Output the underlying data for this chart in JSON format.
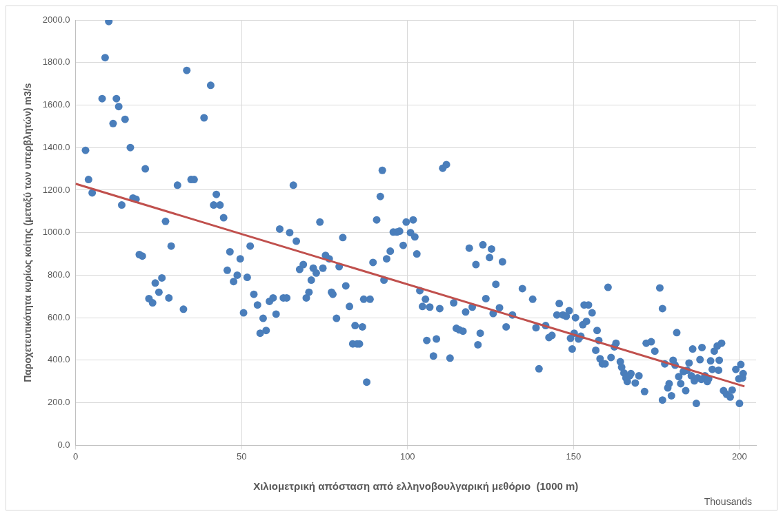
{
  "chart_data": {
    "type": "scatter",
    "xlabel": "Χιλιομετρική απόσταση από ελληνοβουλγαρική μεθόριο  (1000 m)",
    "ylabel": "Παροχετευτικότητα κυρίως κοίτης (μεταξύ των υπερβλητών) m3/s",
    "annotations": [
      "Thousands"
    ],
    "xlim": [
      0,
      205
    ],
    "xticks": [
      0,
      50,
      100,
      150,
      200
    ],
    "ylim": [
      0,
      2000
    ],
    "yticks": [
      {
        "value": 0,
        "label": "0.0"
      },
      {
        "value": 200,
        "label": "200.0"
      },
      {
        "value": 400,
        "label": "400.0"
      },
      {
        "value": 600,
        "label": "600.0"
      },
      {
        "value": 800,
        "label": "800.0"
      },
      {
        "value": 1000,
        "label": "1000.0"
      },
      {
        "value": 1200,
        "label": "1200.0"
      },
      {
        "value": 1400,
        "label": "1400.0"
      },
      {
        "value": 1600,
        "label": "1600.0"
      },
      {
        "value": 1800,
        "label": "1800.0"
      },
      {
        "value": 2000,
        "label": "2000.0"
      }
    ],
    "grid": true,
    "legend": false,
    "series": [
      {
        "type": "scatter",
        "marker": "circle",
        "color": "#4a7ebb",
        "x": [
          3.0,
          3.9,
          5.0,
          8.0,
          8.9,
          10,
          11.3,
          12.3,
          13.0,
          13.9,
          14.9,
          16.5,
          17.3,
          18.2,
          19.2,
          20.1,
          21.0,
          22.1,
          23.2,
          24.0,
          25.1,
          26.0,
          27.1,
          28.1,
          28.8,
          30.7,
          32.5,
          33.5,
          34.8,
          35.7,
          38.7,
          40.7,
          41.6,
          42.4,
          43.5,
          44.6,
          45.7,
          46.5,
          47.6,
          48.7,
          49.6,
          50.6,
          51.7,
          52.6,
          53.7,
          54.8,
          55.6,
          56.5,
          57.4,
          58.4,
          59.5,
          60.4,
          61.5,
          62.6,
          63.6,
          64.5,
          65.6,
          66.5,
          67.5,
          68.6,
          69.5,
          70.3,
          71.0,
          71.6,
          72.5,
          73.6,
          74.5,
          75.3,
          76.4,
          77.1,
          77.5,
          78.6,
          79.4,
          80.5,
          81.4,
          82.5,
          83.5,
          84.2,
          84.8,
          85.5,
          86.4,
          86.8,
          87.7,
          88.7,
          89.6,
          90.7,
          91.8,
          92.4,
          92.9,
          93.7,
          94.8,
          95.7,
          96.8,
          97.6,
          98.7,
          99.6,
          100.9,
          101.7,
          102.2,
          102.8,
          103.7,
          104.5,
          105.4,
          105.8,
          106.7,
          107.8,
          108.7,
          109.7,
          110.6,
          111.7,
          112.8,
          113.9,
          114.7,
          115.6,
          116.7,
          117.5,
          118.6,
          119.5,
          120.6,
          121.2,
          121.9,
          122.7,
          123.6,
          124.7,
          125.3,
          125.8,
          126.6,
          127.7,
          128.6,
          129.7,
          131.6,
          134.6,
          137.7,
          138.7,
          139.6,
          141.6,
          142.6,
          143.5,
          145.0,
          145.7,
          146.8,
          147.8,
          148.7,
          149.1,
          149.6,
          150.2,
          150.6,
          151.5,
          152.2,
          152.8,
          153.2,
          153.9,
          154.5,
          155.6,
          156.7,
          157.1,
          157.6,
          158.0,
          158.7,
          159.5,
          160.4,
          161.3,
          162.3,
          162.8,
          164.1,
          164.5,
          165.2,
          165.8,
          166.2,
          166.9,
          167.3,
          168.6,
          169.7,
          171.4,
          171.9,
          173.4,
          174.5,
          176.0,
          176.8,
          176.8,
          177.5,
          178.4,
          178.8,
          179.5,
          180.0,
          180.6,
          181.1,
          181.7,
          182.3,
          183.1,
          183.8,
          184.2,
          184.8,
          185.5,
          185.9,
          186.4,
          187.0,
          187.4,
          188.1,
          188.5,
          188.7,
          189.6,
          190.3,
          190.7,
          191.3,
          191.8,
          192.4,
          193.3,
          193.7,
          193.9,
          194.6,
          195.2,
          196.1,
          197.2,
          197.8,
          198.9,
          199.8,
          200.0,
          200.4,
          200.9,
          201.1
        ],
        "values": [
          1387,
          1250,
          1187,
          1630,
          1823,
          1993,
          1513,
          1630,
          1593,
          1130,
          1533,
          1400,
          1163,
          1157,
          897,
          890,
          1300,
          690,
          670,
          763,
          720,
          787,
          1053,
          693,
          937,
          1223,
          640,
          1763,
          1250,
          1250,
          1540,
          1693,
          1130,
          1180,
          1130,
          1070,
          823,
          910,
          770,
          800,
          877,
          623,
          790,
          937,
          710,
          660,
          527,
          597,
          540,
          677,
          693,
          617,
          1017,
          693,
          693,
          1000,
          1223,
          960,
          827,
          850,
          693,
          720,
          777,
          833,
          810,
          1050,
          833,
          893,
          877,
          720,
          710,
          597,
          840,
          977,
          750,
          653,
          477,
          563,
          477,
          477,
          557,
          687,
          297,
          687,
          860,
          1060,
          1170,
          1293,
          777,
          877,
          913,
          1003,
          1003,
          1007,
          940,
          1050,
          1000,
          1060,
          980,
          900,
          727,
          653,
          687,
          493,
          650,
          420,
          500,
          643,
          1303,
          1320,
          410,
          670,
          550,
          543,
          537,
          627,
          927,
          650,
          850,
          473,
          527,
          943,
          690,
          883,
          923,
          620,
          757,
          647,
          863,
          557,
          613,
          737,
          687,
          553,
          360,
          563,
          507,
          517,
          613,
          667,
          613,
          607,
          633,
          503,
          453,
          527,
          600,
          500,
          513,
          567,
          660,
          583,
          660,
          623,
          447,
          540,
          493,
          407,
          383,
          383,
          743,
          413,
          463,
          480,
          393,
          367,
          340,
          317,
          300,
          327,
          337,
          293,
          327,
          253,
          480,
          487,
          443,
          740,
          643,
          213,
          383,
          270,
          290,
          233,
          400,
          377,
          530,
          323,
          290,
          347,
          257,
          353,
          387,
          327,
          453,
          303,
          197,
          317,
          403,
          310,
          460,
          327,
          300,
          313,
          397,
          357,
          443,
          467,
          353,
          400,
          480,
          257,
          240,
          227,
          260,
          357,
          313,
          197,
          380,
          317,
          337
        ]
      },
      {
        "type": "line",
        "marker": "none",
        "color": "#c0504d",
        "x": [
          0,
          201.5
        ],
        "values": [
          1230,
          277
        ]
      }
    ]
  }
}
